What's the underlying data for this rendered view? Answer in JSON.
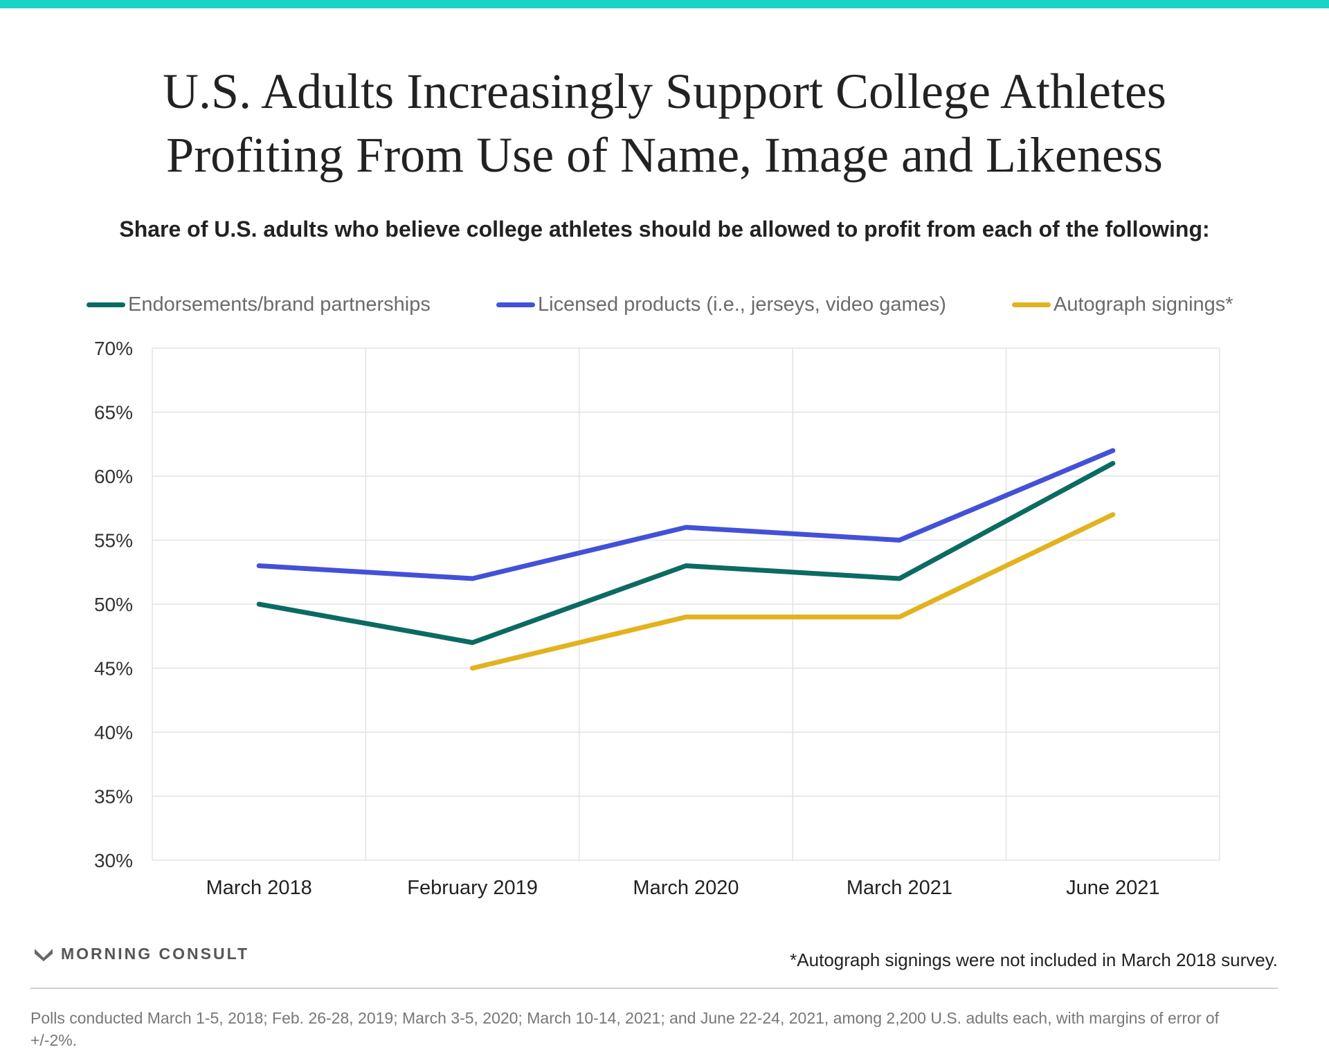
{
  "header": {
    "title_line1": "U.S. Adults Increasingly Support College Athletes",
    "title_line2": "Profiting From Use of Name, Image and Likeness",
    "subtitle": "Share of U.S. adults who believe college athletes should be allowed to profit from each of the following:"
  },
  "colors": {
    "accent_bar": "#1cd3c8",
    "series_endorsements": "#0b6b62",
    "series_licensed": "#4351d8",
    "series_autograph": "#e2b21f"
  },
  "chart_data": {
    "type": "line",
    "title": "U.S. Adults Increasingly Support College Athletes Profiting From Use of Name, Image and Likeness",
    "subtitle": "Share of U.S. adults who believe college athletes should be allowed to profit from each of the following:",
    "categories": [
      "March 2018",
      "February 2019",
      "March 2020",
      "March 2021",
      "June 2021"
    ],
    "ylim": [
      30,
      70
    ],
    "yticks": [
      30,
      35,
      40,
      45,
      50,
      55,
      60,
      65,
      70
    ],
    "ytick_labels": [
      "30%",
      "35%",
      "40%",
      "45%",
      "50%",
      "55%",
      "60%",
      "65%",
      "70%"
    ],
    "grid": true,
    "legend_position": "top",
    "series": [
      {
        "name": "Endorsements/brand partnerships",
        "color": "#0b6b62",
        "values": [
          50,
          47,
          53,
          52,
          61
        ]
      },
      {
        "name": "Licensed products (i.e., jerseys, video games)",
        "color": "#4351d8",
        "values": [
          53,
          52,
          56,
          55,
          62
        ]
      },
      {
        "name": "Autograph signings*",
        "color": "#e2b21f",
        "values": [
          null,
          45,
          49,
          49,
          57
        ]
      }
    ]
  },
  "footer": {
    "brand": "MORNING CONSULT",
    "footnote": "*Autograph signings were not included in March 2018 survey.",
    "source": "Polls conducted March 1-5, 2018; Feb. 26-28, 2019; March 3-5, 2020; March 10-14, 2021; and June 22-24, 2021, among 2,200 U.S. adults each, with margins of error of +/-2%."
  }
}
